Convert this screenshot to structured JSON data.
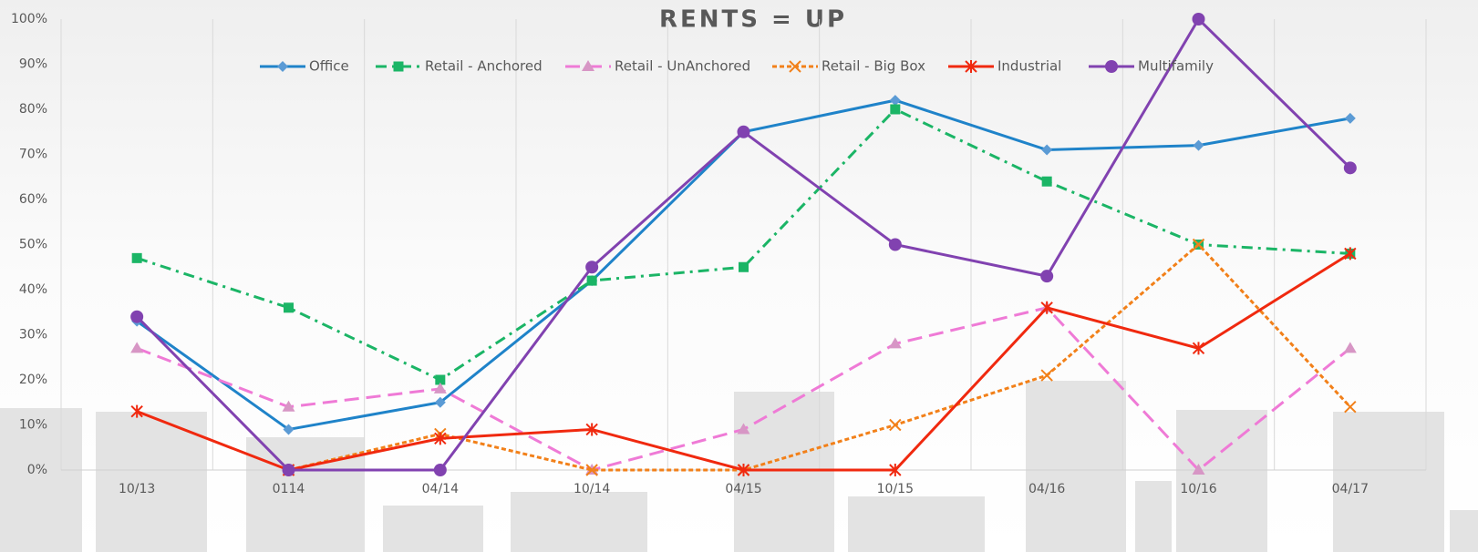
{
  "chart_data": {
    "type": "line",
    "title": "RENTS  = UP",
    "categories": [
      "10/13",
      "0114",
      "04/14",
      "10/14",
      "04/15",
      "10/15",
      "04/16",
      "10/16",
      "04/17"
    ],
    "ylim": [
      0,
      100
    ],
    "yticks": [
      {
        "value": 0,
        "label": "0%"
      },
      {
        "value": 10,
        "label": "10%"
      },
      {
        "value": 20,
        "label": "20%"
      },
      {
        "value": 30,
        "label": "30%"
      },
      {
        "value": 40,
        "label": "40%"
      },
      {
        "value": 50,
        "label": "50%"
      },
      {
        "value": 60,
        "label": "60%"
      },
      {
        "value": 70,
        "label": "70%"
      },
      {
        "value": 80,
        "label": "80%"
      },
      {
        "value": 90,
        "label": "90%"
      },
      {
        "value": 100,
        "label": "100%"
      }
    ],
    "legend": "top",
    "series": [
      {
        "name": "Office",
        "color": "#1f83c9",
        "dash": "solid",
        "marker": "diamond",
        "values": [
          33,
          9,
          15,
          42,
          75,
          82,
          71,
          72,
          78
        ]
      },
      {
        "name": "Retail - Anchored",
        "color": "#1bb566",
        "dash": "dashdot",
        "marker": "square",
        "values": [
          47,
          36,
          20,
          42,
          45,
          80,
          64,
          50,
          48
        ]
      },
      {
        "name": "Retail - UnAnchored",
        "color": "#ef7ad6",
        "dash": "dash",
        "marker": "triangle",
        "values": [
          27,
          14,
          18,
          0,
          9,
          28,
          36,
          0,
          27
        ]
      },
      {
        "name": "Retail - Big Box",
        "color": "#f28019",
        "dash": "dot",
        "marker": "x",
        "values": [
          null,
          0,
          8,
          0,
          0,
          10,
          21,
          50,
          14
        ]
      },
      {
        "name": "Industrial",
        "color": "#f0290f",
        "dash": "solid",
        "marker": "star",
        "values": [
          13,
          0,
          7,
          9,
          0,
          0,
          36,
          27,
          48
        ]
      },
      {
        "name": "Multifamily",
        "color": "#8142b0",
        "dash": "solid",
        "marker": "circle",
        "values": [
          34,
          0,
          0,
          45,
          75,
          50,
          43,
          100,
          67
        ]
      }
    ]
  }
}
